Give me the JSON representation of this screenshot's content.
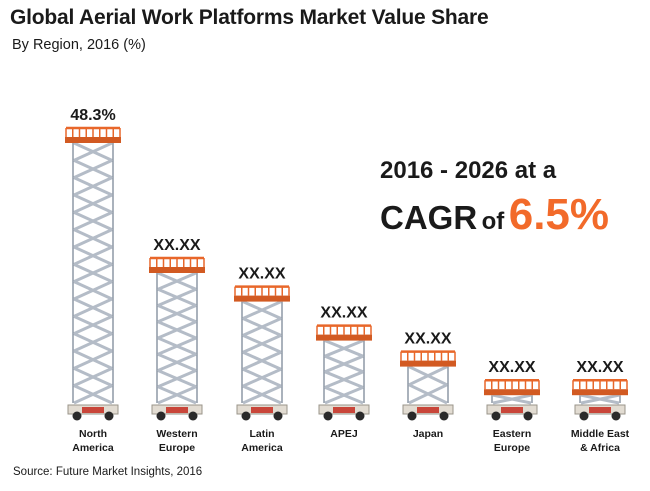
{
  "header": {
    "title": "Global Aerial Work Platforms Market Value Share",
    "subtitle": "By Region, 2016 (%)"
  },
  "callout": {
    "line1": "2016 - 2026 at a",
    "cagr_word": "CAGR",
    "of_word": "of",
    "value": "6.5%"
  },
  "footer": {
    "source": "Source: Future Market Insights, 2016"
  },
  "colors": {
    "platform": "#e8672a",
    "scissor": "#b4bcc7",
    "accent": "#f26a2a"
  },
  "chart_data": {
    "type": "bar",
    "title": "Global Aerial Work Platforms Market Value Share",
    "subtitle": "By Region, 2016 (%)",
    "categories": [
      [
        "North",
        "America"
      ],
      [
        "Western",
        "Europe"
      ],
      [
        "Latin",
        "America"
      ],
      [
        "APEJ"
      ],
      [
        "Japan"
      ],
      [
        "Eastern",
        "Europe"
      ],
      [
        "Middle East",
        "& Africa"
      ]
    ],
    "values": [
      48.3,
      null,
      null,
      null,
      null,
      null,
      null
    ],
    "value_labels": [
      "48.3%",
      "XX.XX",
      "XX.XX",
      "XX.XX",
      "XX.XX",
      "XX.XX",
      "XX.XX"
    ],
    "relative_heights": [
      1.0,
      0.5,
      0.39,
      0.24,
      0.14,
      0.03,
      0.03
    ],
    "grid": false,
    "legend": "none"
  }
}
